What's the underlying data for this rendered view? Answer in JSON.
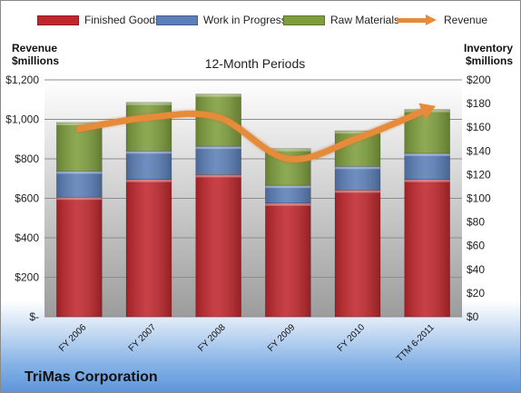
{
  "chart_data": {
    "type": "bar",
    "subtype": "stacked-bar-with-line",
    "title": "12-Month Periods",
    "company": "TriMas Corporation",
    "categories": [
      "FY 2006",
      "FY 2007",
      "FY 2008",
      "FY 2009",
      "FY 2010",
      "TTM 6-2011"
    ],
    "ylabel_left": "Revenue $millions",
    "ylabel_right": "Inventory $millions",
    "ylim_left": [
      0,
      1200
    ],
    "ylim_right": [
      0,
      200
    ],
    "yticks_left": [
      "$-",
      "$200",
      "$400",
      "$600",
      "$800",
      "$1,000",
      "$1,200"
    ],
    "yticks_right": [
      "$0",
      "$20",
      "$40",
      "$60",
      "$80",
      "$100",
      "$120",
      "$140",
      "$160",
      "$180",
      "$200"
    ],
    "legend_position": "top",
    "grid": true,
    "series": [
      {
        "name": "Finished Goods",
        "axis": "right",
        "kind": "stacked-bar",
        "color": "#c0272d",
        "values": [
          101,
          116,
          120,
          96,
          107,
          116
        ]
      },
      {
        "name": "Work in Progress",
        "axis": "right",
        "kind": "stacked-bar",
        "color": "#5b7fb8",
        "values": [
          22,
          24,
          24,
          15,
          20,
          22
        ]
      },
      {
        "name": "Raw Materials",
        "axis": "right",
        "kind": "stacked-bar",
        "color": "#7e9e3c",
        "values": [
          41,
          41,
          44,
          31,
          30,
          37
        ]
      },
      {
        "name": "Revenue",
        "axis": "left",
        "kind": "line",
        "color": "#e58b3a",
        "values": [
          952,
          1010,
          1010,
          800,
          905,
          1050
        ]
      }
    ]
  }
}
